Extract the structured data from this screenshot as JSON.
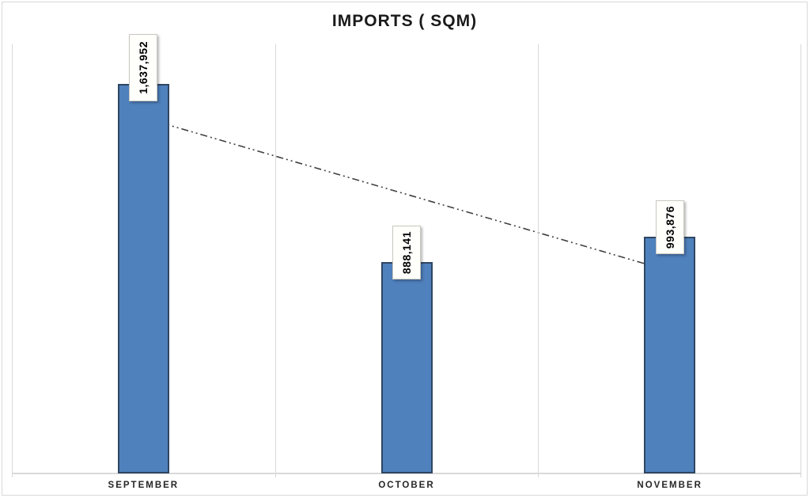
{
  "title": "IMPORTS ( SQM)",
  "chart_data": {
    "type": "bar",
    "title": "IMPORTS ( SQM)",
    "categories": [
      "SEPTEMBER",
      "OCTOBER",
      "NOVEMBER"
    ],
    "values": [
      1637952,
      888141,
      993876
    ],
    "data_labels": [
      "1,637,952",
      "888,141",
      "993,876"
    ],
    "data_label_orientation": "rotated-90-ccw",
    "xlabel": "",
    "ylabel": "",
    "ylim": [
      0,
      1804000
    ],
    "y_axis_labels_visible": false,
    "gridlines": "vertical-category-boundaries",
    "legend": "none",
    "trendline": {
      "type": "linear",
      "series": "imports",
      "style": "dash-dot-dot",
      "color": "#404040",
      "endpoint_values": [
        1495361,
        851285
      ]
    },
    "colors": {
      "bar_fill": "#4F81BD",
      "bar_border": "#2F4662",
      "gridline": "#D9D9D9",
      "axis_line": "#D9D9D9",
      "chart_border": "#D9D9D9",
      "title_color": "#1A1A1A",
      "category_label_color": "#262626",
      "data_label_bg": "#FFFFFC",
      "data_label_border": "#C9C7BE",
      "data_label_text": "#000000"
    }
  }
}
